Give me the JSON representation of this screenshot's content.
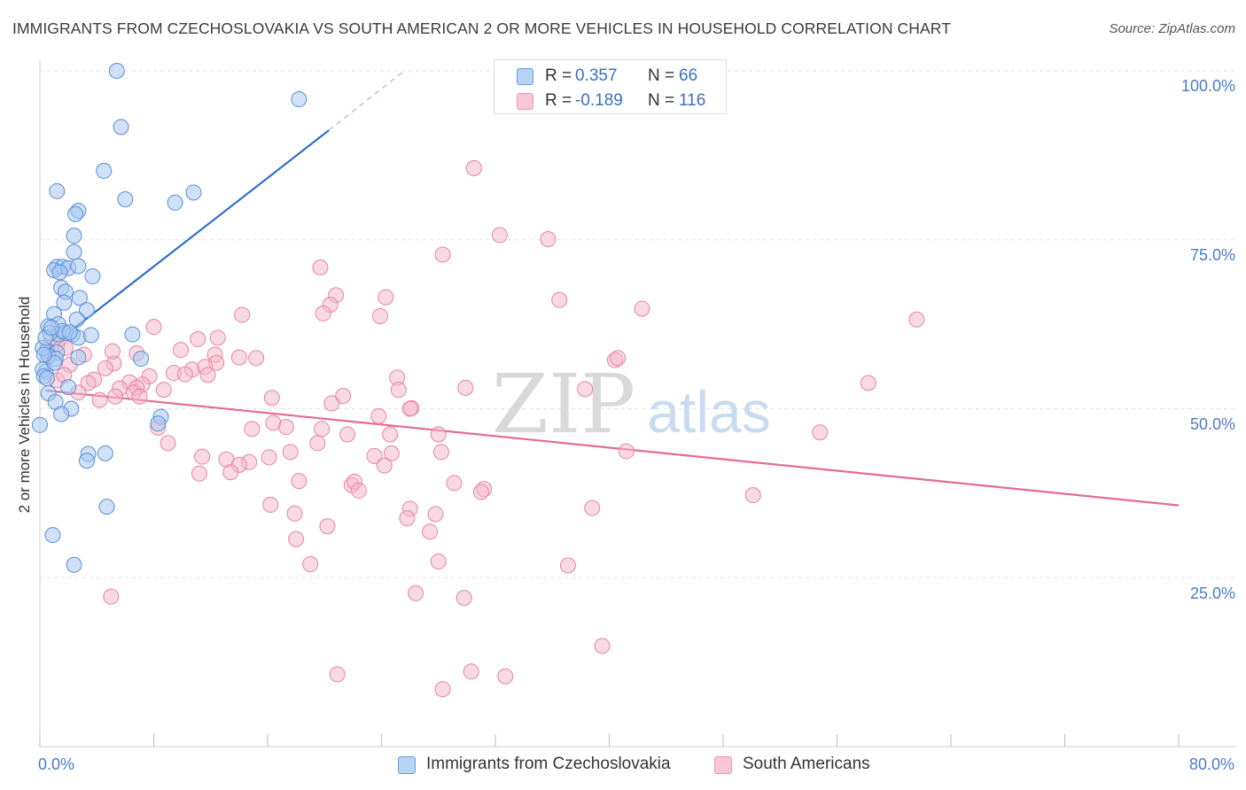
{
  "title": "IMMIGRANTS FROM CZECHOSLOVAKIA VS SOUTH AMERICAN 2 OR MORE VEHICLES IN HOUSEHOLD CORRELATION CHART",
  "source": "Source: ZipAtlas.com",
  "watermark": {
    "zip": "ZIP",
    "atlas": "atlas"
  },
  "colors": {
    "blue_fill": "#a8c8f0",
    "blue_stroke": "#5a8fd8",
    "blue_line": "#2f6fd0",
    "pink_fill": "#f4b5c8",
    "pink_stroke": "#e884a6",
    "pink_line": "#e46a97",
    "axis_text": "#4a7cc9",
    "grid": "#e3e3e3"
  },
  "legend_top": {
    "rows": [
      {
        "r_label": "R =",
        "r_value": "0.357",
        "n_label": "N =",
        "n_value": "66"
      },
      {
        "r_label": "R =",
        "r_value": "-0.189",
        "n_label": "N =",
        "n_value": "116"
      }
    ]
  },
  "legend_bottom": {
    "items": [
      {
        "label": "Immigrants from Czechoslovakia"
      },
      {
        "label": "South Americans"
      }
    ]
  },
  "chart_data": {
    "type": "scatter",
    "title": "IMMIGRANTS FROM CZECHOSLOVAKIA VS SOUTH AMERICAN 2 OR MORE VEHICLES IN HOUSEHOLD CORRELATION CHART",
    "xlabel": "",
    "ylabel": "2 or more Vehicles in Household",
    "xlim": [
      0,
      80
    ],
    "ylim": [
      0,
      100
    ],
    "x_tick_labels": [
      "0.0%",
      "80.0%"
    ],
    "y_ticks": [
      25,
      50,
      75,
      100
    ],
    "y_tick_labels": [
      "25.0%",
      "50.0%",
      "75.0%",
      "100.0%"
    ],
    "grid": true,
    "legend_placement": "top-center",
    "series": [
      {
        "name": "Immigrants from Czechoslovakia",
        "R": 0.357,
        "N": 66,
        "trend": {
          "x0": 0.4,
          "y0": 58.6,
          "x1": 20.3,
          "y1": 91.2,
          "dash_to_x": 25.6,
          "dash_to_y": 100
        },
        "points": [
          [
            5.4,
            100.0
          ],
          [
            18.2,
            95.8
          ],
          [
            5.7,
            91.7
          ],
          [
            4.5,
            85.2
          ],
          [
            1.2,
            82.2
          ],
          [
            6.0,
            81.0
          ],
          [
            10.8,
            82.0
          ],
          [
            9.5,
            80.5
          ],
          [
            2.7,
            79.3
          ],
          [
            2.5,
            78.8
          ],
          [
            2.4,
            75.6
          ],
          [
            2.4,
            73.2
          ],
          [
            1.2,
            71.0
          ],
          [
            1.6,
            71.0
          ],
          [
            2.0,
            70.8
          ],
          [
            2.7,
            71.1
          ],
          [
            1.0,
            70.5
          ],
          [
            1.4,
            70.2
          ],
          [
            3.7,
            69.6
          ],
          [
            1.5,
            67.9
          ],
          [
            1.8,
            67.3
          ],
          [
            2.8,
            66.4
          ],
          [
            1.7,
            65.7
          ],
          [
            3.3,
            64.6
          ],
          [
            1.0,
            64.0
          ],
          [
            1.3,
            62.5
          ],
          [
            2.6,
            63.2
          ],
          [
            0.6,
            62.2
          ],
          [
            1.3,
            61.0
          ],
          [
            1.8,
            61.2
          ],
          [
            2.3,
            61.0
          ],
          [
            2.7,
            60.5
          ],
          [
            3.6,
            60.9
          ],
          [
            6.5,
            61.0
          ],
          [
            0.7,
            61.2
          ],
          [
            0.5,
            58.6
          ],
          [
            1.2,
            58.3
          ],
          [
            0.6,
            57.8
          ],
          [
            1.1,
            57.4
          ],
          [
            2.7,
            57.6
          ],
          [
            0.4,
            55.5
          ],
          [
            0.2,
            55.8
          ],
          [
            0.3,
            54.8
          ],
          [
            0.5,
            54.5
          ],
          [
            7.1,
            57.4
          ],
          [
            0.6,
            52.3
          ],
          [
            1.1,
            51.0
          ],
          [
            2.2,
            50.0
          ],
          [
            1.5,
            49.2
          ],
          [
            8.5,
            48.8
          ],
          [
            8.3,
            47.8
          ],
          [
            0.0,
            47.6
          ],
          [
            3.4,
            43.3
          ],
          [
            4.6,
            43.4
          ],
          [
            3.3,
            42.3
          ],
          [
            4.7,
            35.5
          ],
          [
            0.9,
            31.3
          ],
          [
            2.4,
            26.9
          ],
          [
            0.2,
            59.0
          ],
          [
            0.4,
            60.5
          ],
          [
            1.0,
            56.8
          ],
          [
            2.0,
            53.2
          ],
          [
            0.3,
            58.0
          ],
          [
            1.6,
            61.5
          ],
          [
            0.8,
            62.0
          ],
          [
            2.1,
            61.3
          ]
        ]
      },
      {
        "name": "South Americans",
        "R": -0.189,
        "N": 116,
        "trend": {
          "x0": 0.4,
          "y0": 52.7,
          "x1": 80.0,
          "y1": 35.7
        },
        "points": [
          [
            30.5,
            85.6
          ],
          [
            32.3,
            75.7
          ],
          [
            35.7,
            75.1
          ],
          [
            28.3,
            72.8
          ],
          [
            19.7,
            70.9
          ],
          [
            20.8,
            66.8
          ],
          [
            24.3,
            66.5
          ],
          [
            36.5,
            66.1
          ],
          [
            42.3,
            64.8
          ],
          [
            20.4,
            65.4
          ],
          [
            14.2,
            63.9
          ],
          [
            19.9,
            64.1
          ],
          [
            23.9,
            63.7
          ],
          [
            61.6,
            63.2
          ],
          [
            8.0,
            62.1
          ],
          [
            0.8,
            60.6
          ],
          [
            1.5,
            60.5
          ],
          [
            12.5,
            60.5
          ],
          [
            1.2,
            59.5
          ],
          [
            1.8,
            59.0
          ],
          [
            9.9,
            58.7
          ],
          [
            12.3,
            58.0
          ],
          [
            0.6,
            58.0
          ],
          [
            3.1,
            58.0
          ],
          [
            6.8,
            58.2
          ],
          [
            14.0,
            57.6
          ],
          [
            15.2,
            57.5
          ],
          [
            12.4,
            56.8
          ],
          [
            40.4,
            57.2
          ],
          [
            40.6,
            57.5
          ],
          [
            5.2,
            56.7
          ],
          [
            2.1,
            56.5
          ],
          [
            4.6,
            56.0
          ],
          [
            10.7,
            55.8
          ],
          [
            11.6,
            56.2
          ],
          [
            9.4,
            55.3
          ],
          [
            10.2,
            55.1
          ],
          [
            11.8,
            55.0
          ],
          [
            7.7,
            54.8
          ],
          [
            25.1,
            54.6
          ],
          [
            3.8,
            54.3
          ],
          [
            6.3,
            53.9
          ],
          [
            1.2,
            54.2
          ],
          [
            3.4,
            53.8
          ],
          [
            7.2,
            53.6
          ],
          [
            6.8,
            53.1
          ],
          [
            5.6,
            53.0
          ],
          [
            25.2,
            52.8
          ],
          [
            2.7,
            52.4
          ],
          [
            6.6,
            52.4
          ],
          [
            29.9,
            53.1
          ],
          [
            38.3,
            52.9
          ],
          [
            5.3,
            51.8
          ],
          [
            21.3,
            51.9
          ],
          [
            8.7,
            52.8
          ],
          [
            4.2,
            51.3
          ],
          [
            16.3,
            51.6
          ],
          [
            26.1,
            50.1
          ],
          [
            23.8,
            48.9
          ],
          [
            58.2,
            53.8
          ],
          [
            26.0,
            50.0
          ],
          [
            28.0,
            46.2
          ],
          [
            24.6,
            46.2
          ],
          [
            21.6,
            46.2
          ],
          [
            19.8,
            47.0
          ],
          [
            8.3,
            47.2
          ],
          [
            14.9,
            47.0
          ],
          [
            16.4,
            47.9
          ],
          [
            17.3,
            47.3
          ],
          [
            19.5,
            44.9
          ],
          [
            9.0,
            44.9
          ],
          [
            17.6,
            43.6
          ],
          [
            24.7,
            43.4
          ],
          [
            13.1,
            42.5
          ],
          [
            14.7,
            42.1
          ],
          [
            23.5,
            43.0
          ],
          [
            28.2,
            43.6
          ],
          [
            16.1,
            42.8
          ],
          [
            41.2,
            43.7
          ],
          [
            11.4,
            42.9
          ],
          [
            14.0,
            41.7
          ],
          [
            24.2,
            41.6
          ],
          [
            11.2,
            40.4
          ],
          [
            13.4,
            40.6
          ],
          [
            18.2,
            39.3
          ],
          [
            21.9,
            38.7
          ],
          [
            22.1,
            39.2
          ],
          [
            29.1,
            39.0
          ],
          [
            31.2,
            38.1
          ],
          [
            31.0,
            37.7
          ],
          [
            22.4,
            37.9
          ],
          [
            50.1,
            37.2
          ],
          [
            16.2,
            35.8
          ],
          [
            17.9,
            34.5
          ],
          [
            26.0,
            35.2
          ],
          [
            25.8,
            33.8
          ],
          [
            27.8,
            34.4
          ],
          [
            38.8,
            35.3
          ],
          [
            20.2,
            32.6
          ],
          [
            27.4,
            31.8
          ],
          [
            18.0,
            30.7
          ],
          [
            28.0,
            27.4
          ],
          [
            37.1,
            26.8
          ],
          [
            19.0,
            27.0
          ],
          [
            26.4,
            22.7
          ],
          [
            29.8,
            22.0
          ],
          [
            5.0,
            22.2
          ],
          [
            39.5,
            14.9
          ],
          [
            20.9,
            10.7
          ],
          [
            30.3,
            11.1
          ],
          [
            32.7,
            10.4
          ],
          [
            28.3,
            8.5
          ],
          [
            54.8,
            46.5
          ],
          [
            20.5,
            50.8
          ],
          [
            11.1,
            60.3
          ],
          [
            7.0,
            51.8
          ],
          [
            5.1,
            58.5
          ],
          [
            1.7,
            55.0
          ]
        ]
      }
    ]
  }
}
